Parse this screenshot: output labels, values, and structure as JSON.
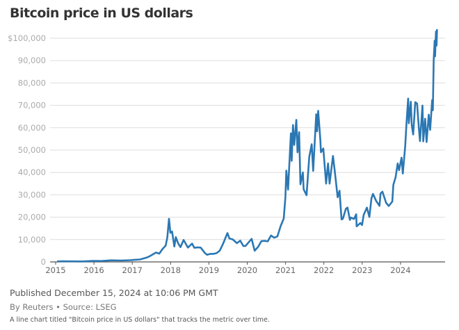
{
  "chart_data": {
    "type": "line",
    "title": "Bitcoin price in US dollars",
    "xlabel": "",
    "ylabel": "",
    "ylim": [
      0,
      100000
    ],
    "y_ticks": [
      0,
      10000,
      20000,
      30000,
      40000,
      50000,
      60000,
      70000,
      80000,
      90000,
      100000
    ],
    "y_tick_labels": [
      "0",
      "10,000",
      "20,000",
      "30,000",
      "40,000",
      "50,000",
      "60,000",
      "70,000",
      "80,000",
      "90,000",
      "$100,000"
    ],
    "x_tick_labels": [
      "2015",
      "2016",
      "2017",
      "2018",
      "2019",
      "2020",
      "2021",
      "2022",
      "2023",
      "2024"
    ],
    "grid": "horizontal",
    "line_color": "#2b77b3",
    "series": [
      {
        "points": [
          [
            "2015-01-15",
            210
          ],
          [
            "2015-03-15",
            270
          ],
          [
            "2015-06-15",
            240
          ],
          [
            "2015-09-15",
            230
          ],
          [
            "2015-12-15",
            440
          ],
          [
            "2016-03-15",
            415
          ],
          [
            "2016-06-15",
            700
          ],
          [
            "2016-09-15",
            610
          ],
          [
            "2016-12-15",
            780
          ],
          [
            "2017-01-15",
            900
          ],
          [
            "2017-03-15",
            1100
          ],
          [
            "2017-05-15",
            1900
          ],
          [
            "2017-06-15",
            2500
          ],
          [
            "2017-08-15",
            4200
          ],
          [
            "2017-09-15",
            3700
          ],
          [
            "2017-10-15",
            5700
          ],
          [
            "2017-11-15",
            7300
          ],
          [
            "2017-12-01",
            10900
          ],
          [
            "2017-12-17",
            19300
          ],
          [
            "2017-12-30",
            13000
          ],
          [
            "2018-01-15",
            13600
          ],
          [
            "2018-02-06",
            6900
          ],
          [
            "2018-02-20",
            11100
          ],
          [
            "2018-03-15",
            8200
          ],
          [
            "2018-04-05",
            6600
          ],
          [
            "2018-05-05",
            9800
          ],
          [
            "2018-06-15",
            6400
          ],
          [
            "2018-07-25",
            8200
          ],
          [
            "2018-08-15",
            6300
          ],
          [
            "2018-09-15",
            6500
          ],
          [
            "2018-10-15",
            6400
          ],
          [
            "2018-11-25",
            3900
          ],
          [
            "2018-12-15",
            3200
          ],
          [
            "2019-01-15",
            3600
          ],
          [
            "2019-02-15",
            3600
          ],
          [
            "2019-03-15",
            3900
          ],
          [
            "2019-04-15",
            5100
          ],
          [
            "2019-05-15",
            8000
          ],
          [
            "2019-06-26",
            12900
          ],
          [
            "2019-07-15",
            10500
          ],
          [
            "2019-08-15",
            10100
          ],
          [
            "2019-09-25",
            8400
          ],
          [
            "2019-10-26",
            9500
          ],
          [
            "2019-11-25",
            7100
          ],
          [
            "2019-12-15",
            7100
          ],
          [
            "2020-01-15",
            8800
          ],
          [
            "2020-02-12",
            10300
          ],
          [
            "2020-03-12",
            5000
          ],
          [
            "2020-04-15",
            6800
          ],
          [
            "2020-05-15",
            9300
          ],
          [
            "2020-06-15",
            9400
          ],
          [
            "2020-07-15",
            9200
          ],
          [
            "2020-08-15",
            11800
          ],
          [
            "2020-09-15",
            10800
          ],
          [
            "2020-10-15",
            11400
          ],
          [
            "2020-11-15",
            16000
          ],
          [
            "2020-12-15",
            19400
          ],
          [
            "2020-12-31",
            29000
          ],
          [
            "2021-01-08",
            40800
          ],
          [
            "2021-01-25",
            32300
          ],
          [
            "2021-02-21",
            57500
          ],
          [
            "2021-02-28",
            45200
          ],
          [
            "2021-03-13",
            61200
          ],
          [
            "2021-03-25",
            52300
          ],
          [
            "2021-04-14",
            63500
          ],
          [
            "2021-04-25",
            49000
          ],
          [
            "2021-05-10",
            58000
          ],
          [
            "2021-05-23",
            34700
          ],
          [
            "2021-06-15",
            40000
          ],
          [
            "2021-06-22",
            32500
          ],
          [
            "2021-07-20",
            29800
          ],
          [
            "2021-08-15",
            47000
          ],
          [
            "2021-09-07",
            52600
          ],
          [
            "2021-09-21",
            40700
          ],
          [
            "2021-10-20",
            66000
          ],
          [
            "2021-10-28",
            58400
          ],
          [
            "2021-11-08",
            67500
          ],
          [
            "2021-11-28",
            54700
          ],
          [
            "2021-12-04",
            49000
          ],
          [
            "2021-12-27",
            50700
          ],
          [
            "2022-01-22",
            35000
          ],
          [
            "2022-02-10",
            44000
          ],
          [
            "2022-02-24",
            35000
          ],
          [
            "2022-03-29",
            47400
          ],
          [
            "2022-04-15",
            40500
          ],
          [
            "2022-05-12",
            28900
          ],
          [
            "2022-05-30",
            31800
          ],
          [
            "2022-06-18",
            19000
          ],
          [
            "2022-07-01",
            19300
          ],
          [
            "2022-07-30",
            23800
          ],
          [
            "2022-08-14",
            24300
          ],
          [
            "2022-09-06",
            18800
          ],
          [
            "2022-09-15",
            19800
          ],
          [
            "2022-10-15",
            19200
          ],
          [
            "2022-11-05",
            21300
          ],
          [
            "2022-11-09",
            15900
          ],
          [
            "2022-12-15",
            17400
          ],
          [
            "2022-12-31",
            16500
          ],
          [
            "2023-01-15",
            21000
          ],
          [
            "2023-02-15",
            24300
          ],
          [
            "2023-03-10",
            20100
          ],
          [
            "2023-03-30",
            28400
          ],
          [
            "2023-04-14",
            30400
          ],
          [
            "2023-05-15",
            27200
          ],
          [
            "2023-06-15",
            25100
          ],
          [
            "2023-06-25",
            30600
          ],
          [
            "2023-07-13",
            31400
          ],
          [
            "2023-08-17",
            26400
          ],
          [
            "2023-09-11",
            25000
          ],
          [
            "2023-10-15",
            27000
          ],
          [
            "2023-10-25",
            34500
          ],
          [
            "2023-11-15",
            37800
          ],
          [
            "2023-12-05",
            44000
          ],
          [
            "2023-12-18",
            41000
          ],
          [
            "2024-01-11",
            46600
          ],
          [
            "2024-01-23",
            39500
          ],
          [
            "2024-02-15",
            52000
          ],
          [
            "2024-02-28",
            62500
          ],
          [
            "2024-03-14",
            73000
          ],
          [
            "2024-03-20",
            62000
          ],
          [
            "2024-04-08",
            71600
          ],
          [
            "2024-04-17",
            61300
          ],
          [
            "2024-05-01",
            57000
          ],
          [
            "2024-05-21",
            71400
          ],
          [
            "2024-06-07",
            70800
          ],
          [
            "2024-06-24",
            60200
          ],
          [
            "2024-07-05",
            54000
          ],
          [
            "2024-07-29",
            69900
          ],
          [
            "2024-08-05",
            53900
          ],
          [
            "2024-08-23",
            64000
          ],
          [
            "2024-09-06",
            53600
          ],
          [
            "2024-09-27",
            65800
          ],
          [
            "2024-10-10",
            59000
          ],
          [
            "2024-10-29",
            72300
          ],
          [
            "2024-11-05",
            67800
          ],
          [
            "2024-11-13",
            90000
          ],
          [
            "2024-11-22",
            98900
          ],
          [
            "2024-11-26",
            91900
          ],
          [
            "2024-12-05",
            103000
          ],
          [
            "2024-12-10",
            96700
          ],
          [
            "2024-12-15",
            104000
          ]
        ]
      }
    ]
  },
  "footer": {
    "published": "Published December 15, 2024 at 10:06 PM GMT",
    "byline": "By Reuters • Source: LSEG",
    "alt_text": "A line chart titled \"Bitcoin price in US dollars\" that tracks the metric over time."
  }
}
